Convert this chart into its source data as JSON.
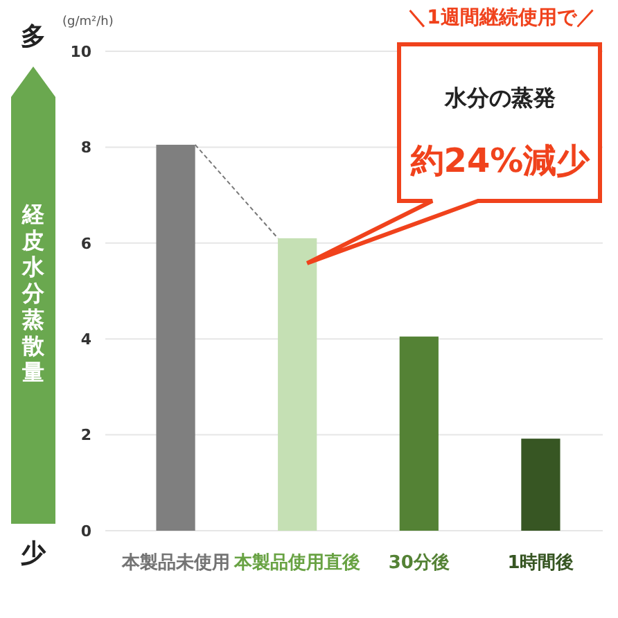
{
  "chart_data": {
    "type": "bar",
    "ylabel": "経皮水分蒸散量",
    "categories": [
      "本製品未使用",
      "本製品使用直後",
      "30分後",
      "1時間後"
    ],
    "values": [
      8.05,
      6.1,
      4.05,
      1.92
    ],
    "colors": [
      "#7f7f7f",
      "#c5e0b4",
      "#548235",
      "#375623"
    ],
    "ylim": [
      0,
      10
    ],
    "yticks": [
      0,
      2,
      4,
      6,
      8,
      10
    ],
    "grid": "y",
    "annotations": [
      "多",
      "少",
      "(g/m²/h)",
      "＼1週間継続使用で／",
      "水分の蒸発",
      "約24%減少"
    ]
  }
}
